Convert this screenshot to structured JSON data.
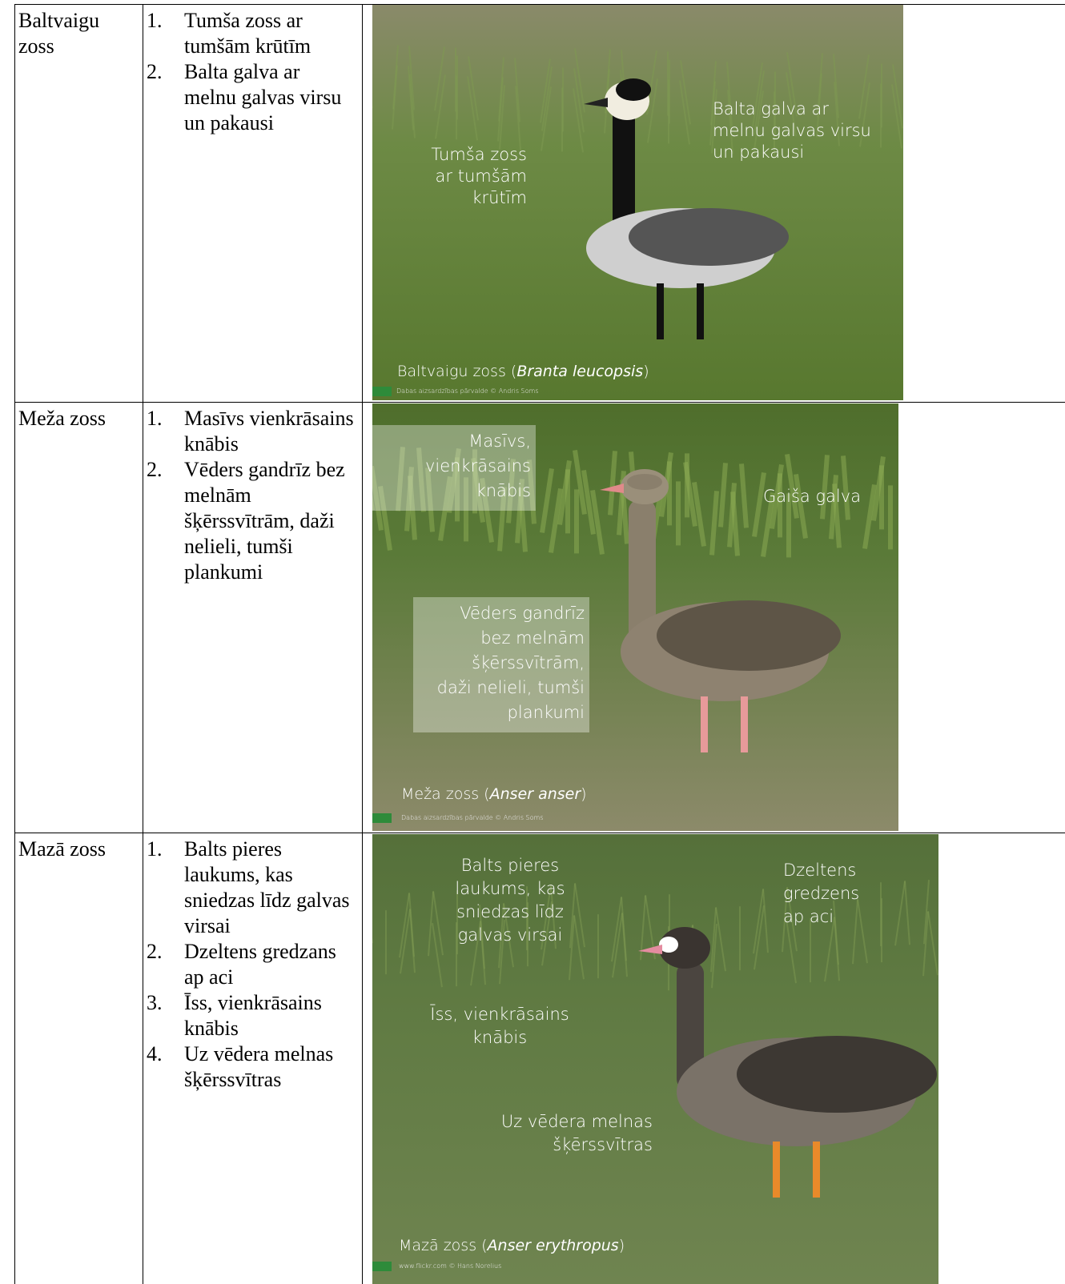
{
  "table": {
    "rows": [
      {
        "name": "Baltvaigu zoss",
        "features": [
          {
            "number": "1.",
            "text": "Tumša zoss ar tumšām krūtīm"
          },
          {
            "number": "2.",
            "text": "Balta galva ar melnu galvas virsu un pakausi"
          }
        ],
        "image": {
          "annotations": [
            {
              "lines": [
                "Balta galva ar",
                "melnu galvas virsu",
                "un pakausi"
              ]
            },
            {
              "lines": [
                "Tumša zoss",
                "ar tumšām",
                "krūtīm"
              ]
            }
          ],
          "caption": [
            "Baltvaigu zoss (",
            "Branta leucopsis",
            ")"
          ],
          "credit": "Dabas aizsardzības pārvalde © Andris Soms"
        }
      },
      {
        "name": "Meža zoss",
        "features": [
          {
            "number": "1.",
            "text": "Masīvs vienkrāsains knābis"
          },
          {
            "number": "2.",
            "text": "Vēders gandrīz bez melnām šķērssvītrām, daži nelieli, tumši plankumi"
          }
        ],
        "image": {
          "annotations": [
            {
              "lines": [
                "Masīvs,",
                "vienkrāsains",
                "knābis"
              ]
            },
            {
              "lines": [
                "Gaiša galva"
              ]
            },
            {
              "lines": [
                "Vēders gandrīz",
                "bez melnām",
                "šķērssvītrām,",
                "daži nelieli, tumši",
                "plankumi"
              ]
            }
          ],
          "caption": [
            "Meža zoss (",
            "Anser anser",
            ")"
          ],
          "credit": "Dabas aizsardzības pārvalde © Andris Soms"
        }
      },
      {
        "name": "Mazā zoss",
        "features": [
          {
            "number": "1.",
            "text": "Balts pieres laukums, kas sniedzas līdz galvas virsai"
          },
          {
            "number": "2.",
            "text": "Dzeltens gredzans ap aci"
          },
          {
            "number": "3.",
            "text": "Īss, vienkrāsains knābis"
          },
          {
            "number": "4.",
            "text": "Uz vēdera melnas šķērssvītras"
          }
        ],
        "image": {
          "annotations": [
            {
              "lines": [
                "Balts pieres",
                "laukums, kas",
                "sniedzas līdz",
                "galvas virsai"
              ]
            },
            {
              "lines": [
                "Dzeltens",
                "gredzens",
                "ap aci"
              ]
            },
            {
              "lines": [
                "Īss, vienkrāsains",
                "knābis"
              ]
            },
            {
              "lines": [
                "Uz vēdera melnas",
                "šķērssvītras"
              ]
            }
          ],
          "caption": [
            "Mazā zoss (",
            "Anser erythropus",
            ")"
          ],
          "credit": "www.flickr.com © Hans Norelius"
        }
      }
    ]
  }
}
